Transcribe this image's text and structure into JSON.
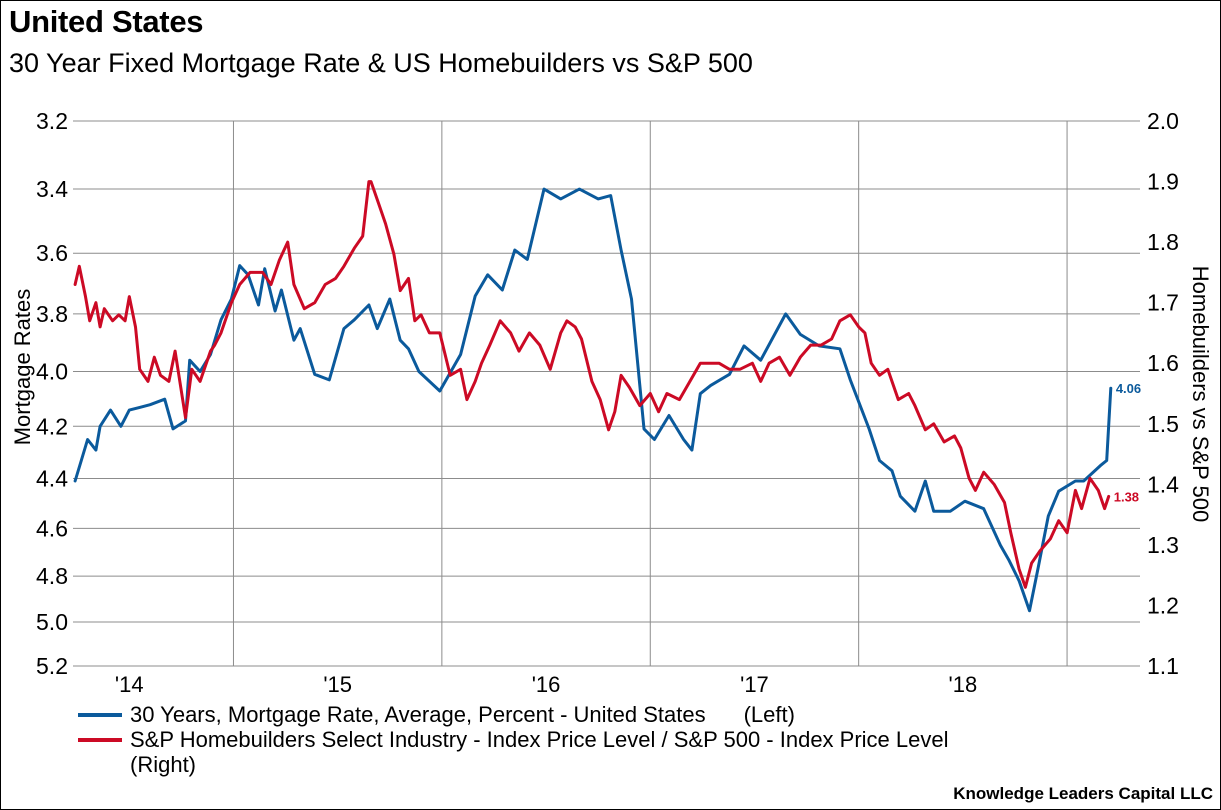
{
  "header": {
    "title": "United States",
    "subtitle": "30 Year Fixed Mortgage Rate & US Homebuilders vs S&P 500"
  },
  "chart_data": {
    "type": "line",
    "title": "United States",
    "subtitle": "30 Year Fixed Mortgage Rate & US Homebuilders vs S&P 500",
    "xlabel": "",
    "ylabel_left": "Mortgage Rates",
    "ylabel_right": "Homebuilders vs S&P 500",
    "left_axis": {
      "ylim": [
        3.2,
        5.2
      ],
      "inverted": true,
      "scale": "log",
      "ticks": [
        "3.2",
        "3.4",
        "3.6",
        "3.8",
        "4.0",
        "4.2",
        "4.4",
        "4.6",
        "4.8",
        "5.0",
        "5.2"
      ]
    },
    "right_axis": {
      "ylim": [
        1.1,
        2.0
      ],
      "inverted": false,
      "scale": "linear",
      "ticks": [
        "2.0",
        "1.9",
        "1.8",
        "1.7",
        "1.6",
        "1.5",
        "1.4",
        "1.3",
        "1.2",
        "1.1"
      ]
    },
    "xlim": [
      2014.23,
      2019.35
    ],
    "x_ticks": [
      {
        "label": "'14",
        "value": 2014.5
      },
      {
        "label": "'15",
        "value": 2015.5
      },
      {
        "label": "'16",
        "value": 2016.5
      },
      {
        "label": "'17",
        "value": 2017.5
      },
      {
        "label": "'18",
        "value": 2018.5
      }
    ],
    "x_gridlines": [
      2015,
      2016,
      2017,
      2018,
      2019
    ],
    "grid": true,
    "legend_position": "bottom",
    "series": [
      {
        "name": "30 Years, Mortgage Rate, Average, Percent - United States",
        "axis_note": "(Left)",
        "axis": "left",
        "color": "#0b5a9c",
        "end_label": "4.06",
        "x": [
          2014.24,
          2014.27,
          2014.3,
          2014.34,
          2014.36,
          2014.41,
          2014.46,
          2014.5,
          2014.55,
          2014.6,
          2014.67,
          2014.71,
          2014.77,
          2014.79,
          2014.84,
          2014.89,
          2014.94,
          2014.99,
          2015.03,
          2015.07,
          2015.12,
          2015.15,
          2015.2,
          2015.23,
          2015.29,
          2015.32,
          2015.39,
          2015.46,
          2015.53,
          2015.58,
          2015.65,
          2015.69,
          2015.75,
          2015.8,
          2015.84,
          2015.89,
          2015.99,
          2016.09,
          2016.16,
          2016.22,
          2016.29,
          2016.35,
          2016.41,
          2016.49,
          2016.57,
          2016.66,
          2016.75,
          2016.81,
          2016.86,
          2016.91,
          2016.97,
          2017.02,
          2017.09,
          2017.16,
          2017.2,
          2017.24,
          2017.29,
          2017.38,
          2017.45,
          2017.53,
          2017.65,
          2017.72,
          2017.81,
          2017.91,
          2017.96,
          2018.05,
          2018.1,
          2018.16,
          2018.2,
          2018.27,
          2018.32,
          2018.36,
          2018.44,
          2018.51,
          2018.6,
          2018.68,
          2018.72,
          2018.77,
          2018.82,
          2018.86,
          2018.91,
          2018.96,
          2019.04,
          2019.08,
          2019.16,
          2019.19,
          2019.21
        ],
        "values": [
          4.41,
          4.33,
          4.25,
          4.29,
          4.2,
          4.14,
          4.2,
          4.14,
          4.13,
          4.12,
          4.1,
          4.21,
          4.18,
          3.96,
          4.0,
          3.94,
          3.82,
          3.75,
          3.64,
          3.67,
          3.77,
          3.65,
          3.79,
          3.72,
          3.89,
          3.85,
          4.01,
          4.03,
          3.85,
          3.82,
          3.77,
          3.85,
          3.75,
          3.89,
          3.92,
          4.0,
          4.07,
          3.94,
          3.74,
          3.67,
          3.72,
          3.59,
          3.62,
          3.4,
          3.43,
          3.4,
          3.43,
          3.42,
          3.59,
          3.75,
          4.21,
          4.25,
          4.16,
          4.25,
          4.29,
          4.08,
          4.05,
          4.01,
          3.91,
          3.96,
          3.8,
          3.87,
          3.91,
          3.92,
          4.03,
          4.21,
          4.33,
          4.37,
          4.47,
          4.53,
          4.41,
          4.53,
          4.53,
          4.49,
          4.52,
          4.67,
          4.73,
          4.82,
          4.95,
          4.77,
          4.55,
          4.45,
          4.41,
          4.41,
          4.35,
          4.33,
          4.06
        ]
      },
      {
        "name": "S&P Homebuilders Select Industry - Index Price Level / S&P 500 - Index Price Level",
        "axis_note": "(Right)",
        "axis": "right",
        "color": "#cc0a25",
        "end_label": "1.38",
        "x": [
          2014.24,
          2014.26,
          2014.29,
          2014.31,
          2014.34,
          2014.36,
          2014.38,
          2014.42,
          2014.45,
          2014.48,
          2014.5,
          2014.53,
          2014.55,
          2014.59,
          2014.62,
          2014.65,
          2014.69,
          2014.72,
          2014.77,
          2014.8,
          2014.84,
          2014.89,
          2014.91,
          2014.94,
          2014.99,
          2015.03,
          2015.08,
          2015.14,
          2015.18,
          2015.22,
          2015.26,
          2015.29,
          2015.34,
          2015.39,
          2015.44,
          2015.49,
          2015.53,
          2015.58,
          2015.62,
          2015.65,
          2015.66,
          2015.69,
          2015.73,
          2015.77,
          2015.8,
          2015.84,
          2015.87,
          2015.9,
          2015.94,
          2015.99,
          2016.04,
          2016.09,
          2016.12,
          2016.16,
          2016.19,
          2016.23,
          2016.28,
          2016.33,
          2016.37,
          2016.42,
          2016.47,
          2016.52,
          2016.57,
          2016.6,
          2016.64,
          2016.67,
          2016.72,
          2016.76,
          2016.8,
          2016.83,
          2016.86,
          2016.9,
          2016.95,
          2017.0,
          2017.04,
          2017.08,
          2017.14,
          2017.19,
          2017.24,
          2017.29,
          2017.33,
          2017.38,
          2017.43,
          2017.49,
          2017.53,
          2017.57,
          2017.62,
          2017.67,
          2017.72,
          2017.77,
          2017.82,
          2017.87,
          2017.91,
          2017.96,
          2018.0,
          2018.03,
          2018.06,
          2018.1,
          2018.14,
          2018.19,
          2018.24,
          2018.27,
          2018.32,
          2018.36,
          2018.41,
          2018.46,
          2018.49,
          2018.53,
          2018.56,
          2018.6,
          2018.65,
          2018.7,
          2018.73,
          2018.77,
          2018.8,
          2018.83,
          2018.87,
          2018.92,
          2018.96,
          2019.0,
          2019.04,
          2019.07,
          2019.11,
          2019.15,
          2019.18,
          2019.2
        ],
        "values": [
          1.73,
          1.76,
          1.71,
          1.67,
          1.7,
          1.66,
          1.69,
          1.67,
          1.68,
          1.67,
          1.71,
          1.66,
          1.59,
          1.57,
          1.61,
          1.58,
          1.57,
          1.62,
          1.51,
          1.59,
          1.57,
          1.62,
          1.63,
          1.65,
          1.7,
          1.73,
          1.75,
          1.75,
          1.73,
          1.77,
          1.8,
          1.73,
          1.69,
          1.7,
          1.73,
          1.74,
          1.76,
          1.79,
          1.81,
          1.9,
          1.9,
          1.87,
          1.83,
          1.78,
          1.72,
          1.74,
          1.67,
          1.68,
          1.65,
          1.65,
          1.58,
          1.59,
          1.54,
          1.57,
          1.6,
          1.63,
          1.67,
          1.65,
          1.62,
          1.65,
          1.63,
          1.59,
          1.65,
          1.67,
          1.66,
          1.64,
          1.57,
          1.54,
          1.49,
          1.52,
          1.58,
          1.56,
          1.53,
          1.55,
          1.52,
          1.55,
          1.54,
          1.57,
          1.6,
          1.6,
          1.6,
          1.59,
          1.59,
          1.6,
          1.57,
          1.6,
          1.61,
          1.58,
          1.61,
          1.63,
          1.63,
          1.64,
          1.67,
          1.68,
          1.66,
          1.65,
          1.6,
          1.58,
          1.59,
          1.54,
          1.55,
          1.53,
          1.49,
          1.5,
          1.47,
          1.48,
          1.46,
          1.41,
          1.39,
          1.42,
          1.4,
          1.37,
          1.32,
          1.26,
          1.23,
          1.27,
          1.29,
          1.31,
          1.34,
          1.32,
          1.39,
          1.36,
          1.41,
          1.39,
          1.36,
          1.38
        ]
      }
    ]
  },
  "legend": {
    "items": [
      {
        "label": "30 Years, Mortgage Rate, Average, Percent - United States",
        "note": "(Left)",
        "color": "#0b5a9c"
      },
      {
        "label": "S&P Homebuilders Select Industry - Index Price Level / S&P 500 - Index Price Level",
        "note": "(Right)",
        "color": "#cc0a25"
      }
    ]
  },
  "source": "Knowledge Leaders Capital LLC"
}
